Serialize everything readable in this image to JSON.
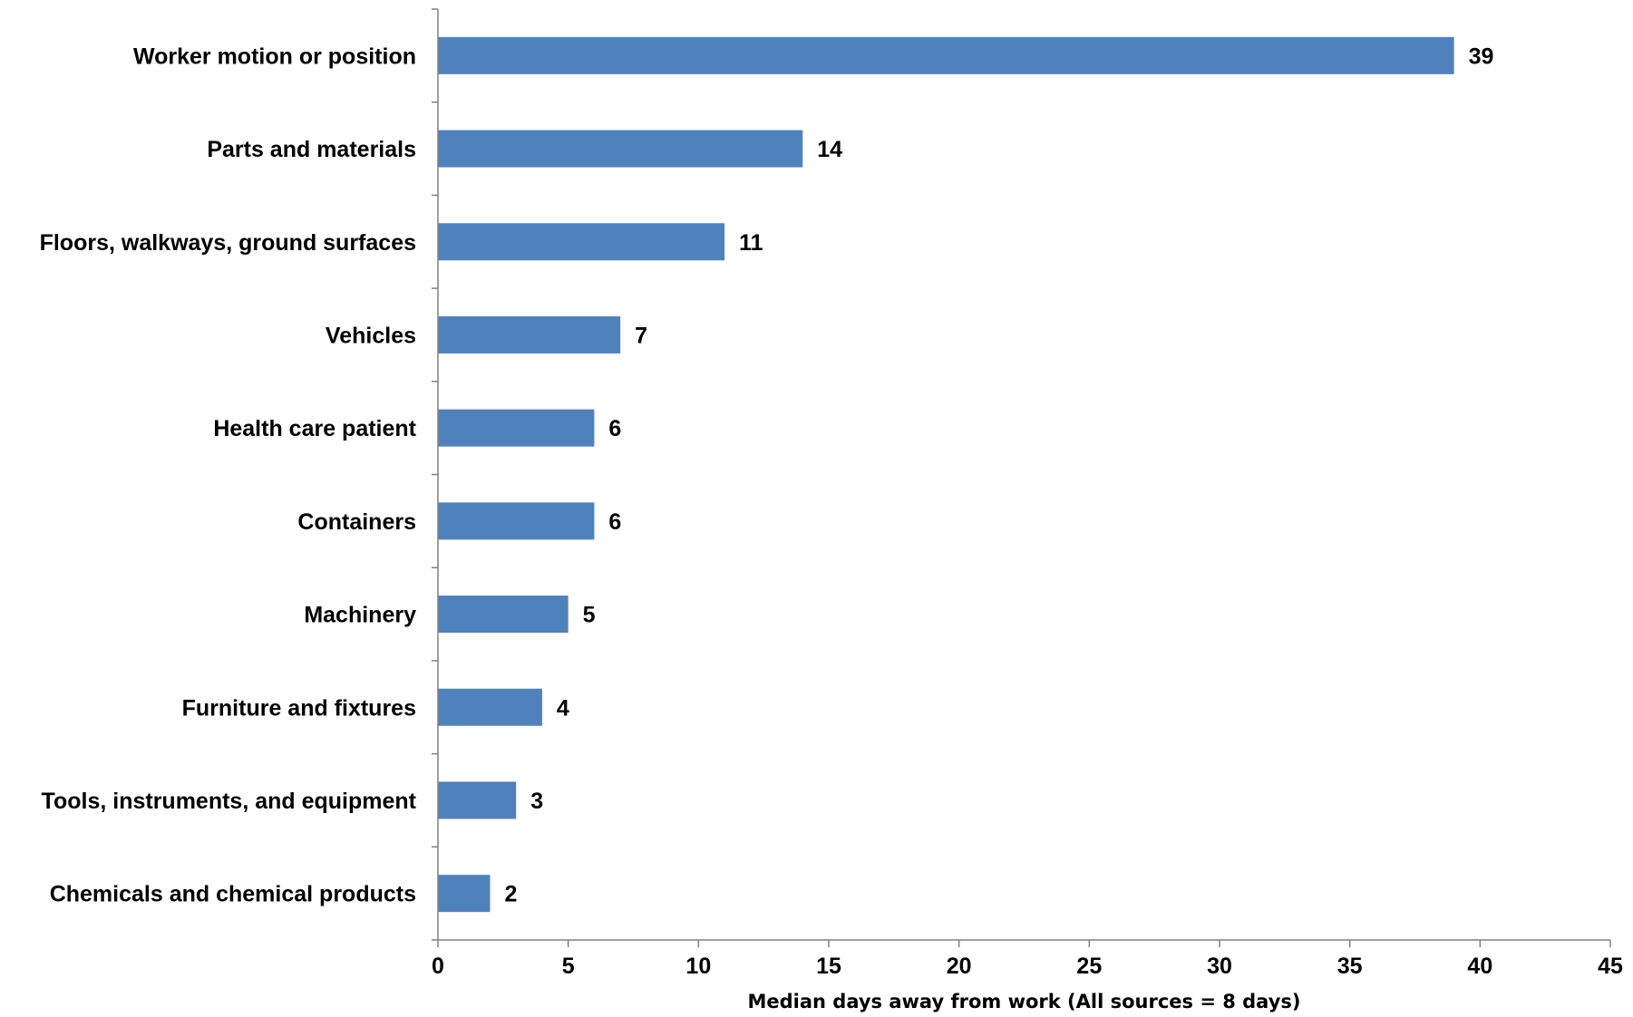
{
  "chart_data": {
    "type": "bar",
    "orientation": "horizontal",
    "title": "",
    "xlabel": "Median days away from work (All sources = 8 days)",
    "ylabel": "",
    "categories": [
      "Worker motion or position",
      "Parts and materials",
      "Floors, walkways, ground surfaces",
      "Vehicles",
      "Health care patient",
      "Containers",
      "Machinery",
      "Furniture and fixtures",
      "Tools, instruments, and equipment",
      "Chemicals and chemical products"
    ],
    "values": [
      39,
      14,
      11,
      7,
      6,
      6,
      5,
      4,
      3,
      2
    ],
    "value_labels": [
      "39",
      "14",
      "11",
      "7",
      "6",
      "6",
      "5",
      "4",
      "3",
      "2"
    ],
    "xlim": [
      0,
      45
    ],
    "x_ticks": [
      0,
      5,
      10,
      15,
      20,
      25,
      30,
      35,
      40,
      45
    ],
    "x_tick_labels": [
      "0",
      "5",
      "10",
      "15",
      "20",
      "25",
      "30",
      "35",
      "40",
      "45"
    ],
    "grid": false,
    "legend": "none",
    "bar_color": "#4F81BD"
  }
}
